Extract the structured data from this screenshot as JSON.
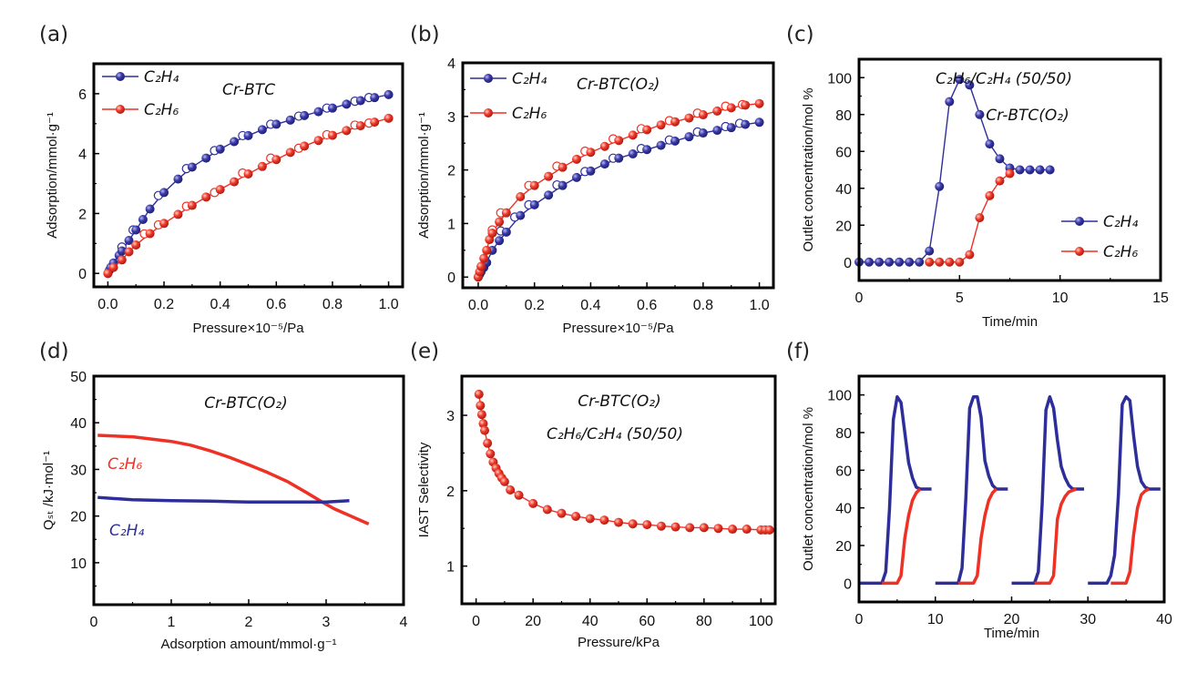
{
  "colors": {
    "C2H4": "#2e2e9a",
    "C2H6": "#ee3124"
  },
  "chart_data": [
    {
      "panel": "(a)",
      "type": "line",
      "title": "Cr-BTC",
      "xlabel": "Pressure×10⁻⁵/Pa",
      "ylabel": "Adsorption/mmol·g⁻¹",
      "xlim": [
        -0.05,
        1.05
      ],
      "ylim": [
        -0.45,
        7
      ],
      "xticks": [
        0,
        0.2,
        0.4,
        0.6,
        0.8,
        1.0
      ],
      "xtick_labels": [
        "0.0",
        "0.2",
        "0.4",
        "0.6",
        "0.8",
        "1.0"
      ],
      "yticks": [
        0,
        2,
        4,
        6
      ],
      "ytick_labels": [
        "0",
        "2",
        "4",
        "6"
      ],
      "legend": "top-left",
      "series": [
        {
          "name": "C₂H₄",
          "color": "#2e2e9a",
          "marker": "filled",
          "x": [
            0,
            0.005,
            0.01,
            0.02,
            0.04,
            0.05,
            0.075,
            0.1,
            0.125,
            0.15,
            0.2,
            0.25,
            0.3,
            0.35,
            0.4,
            0.45,
            0.5,
            0.55,
            0.6,
            0.65,
            0.7,
            0.75,
            0.8,
            0.85,
            0.9,
            0.95,
            1.0
          ],
          "y": [
            0,
            0.1,
            0.2,
            0.35,
            0.6,
            0.75,
            1.1,
            1.45,
            1.8,
            2.15,
            2.7,
            3.15,
            3.55,
            3.85,
            4.15,
            4.4,
            4.6,
            4.8,
            4.98,
            5.12,
            5.27,
            5.4,
            5.52,
            5.65,
            5.77,
            5.87,
            5.97
          ],
          "desorption": {
            "x": [
              0.93,
              0.88,
              0.78,
              0.68,
              0.58,
              0.48,
              0.38,
              0.28,
              0.18,
              0.09,
              0.05
            ],
            "y": [
              5.87,
              5.75,
              5.52,
              5.25,
              4.98,
              4.6,
              4.1,
              3.5,
              2.6,
              1.45,
              0.88
            ]
          }
        },
        {
          "name": "C₂H₆",
          "color": "#ee3124",
          "marker": "filled",
          "x": [
            0,
            0.02,
            0.05,
            0.075,
            0.1,
            0.15,
            0.2,
            0.25,
            0.3,
            0.35,
            0.4,
            0.45,
            0.5,
            0.55,
            0.6,
            0.65,
            0.7,
            0.75,
            0.8,
            0.85,
            0.9,
            0.95,
            1.0
          ],
          "y": [
            0,
            0.2,
            0.45,
            0.72,
            0.95,
            1.33,
            1.67,
            1.97,
            2.27,
            2.55,
            2.8,
            3.06,
            3.32,
            3.57,
            3.8,
            4.04,
            4.25,
            4.44,
            4.61,
            4.77,
            4.93,
            5.05,
            5.18
          ],
          "desorption": {
            "x": [
              0.93,
              0.88,
              0.78,
              0.68,
              0.58,
              0.48,
              0.38,
              0.28,
              0.18,
              0.13
            ],
            "y": [
              5.02,
              4.95,
              4.63,
              4.18,
              3.85,
              3.35,
              2.7,
              2.24,
              1.62,
              1.32
            ]
          }
        }
      ]
    },
    {
      "panel": "(b)",
      "type": "line",
      "title": "Cr-BTC(O₂)",
      "xlabel": "Pressure×10⁻⁵/Pa",
      "ylabel": "Adsorption/mmol·g⁻¹",
      "xlim": [
        -0.055,
        1.05
      ],
      "ylim": [
        -0.2,
        4
      ],
      "xticks": [
        0,
        0.2,
        0.4,
        0.6,
        0.8,
        1.0
      ],
      "xtick_labels": [
        "0.0",
        "0.2",
        "0.4",
        "0.6",
        "0.8",
        "1.0"
      ],
      "yticks": [
        0,
        1,
        2,
        3,
        4
      ],
      "ytick_labels": [
        "0",
        "1",
        "2",
        "3",
        "4"
      ],
      "legend": "top-left",
      "series": [
        {
          "name": "C₂H₄",
          "color": "#2e2e9a",
          "marker": "filled",
          "x": [
            0,
            0.005,
            0.01,
            0.02,
            0.03,
            0.05,
            0.075,
            0.1,
            0.15,
            0.2,
            0.25,
            0.3,
            0.35,
            0.4,
            0.45,
            0.5,
            0.55,
            0.6,
            0.65,
            0.7,
            0.75,
            0.8,
            0.85,
            0.9,
            0.95,
            1.0
          ],
          "y": [
            0,
            0.05,
            0.1,
            0.18,
            0.27,
            0.5,
            0.68,
            0.84,
            1.15,
            1.35,
            1.53,
            1.71,
            1.86,
            1.98,
            2.11,
            2.22,
            2.3,
            2.38,
            2.46,
            2.54,
            2.62,
            2.69,
            2.74,
            2.79,
            2.85,
            2.89
          ],
          "desorption": {
            "x": [
              0.93,
              0.88,
              0.78,
              0.68,
              0.58,
              0.48,
              0.38,
              0.28,
              0.18,
              0.13,
              0.08
            ],
            "y": [
              2.87,
              2.81,
              2.71,
              2.56,
              2.4,
              2.22,
              1.97,
              1.72,
              1.35,
              1.12,
              0.86
            ]
          }
        },
        {
          "name": "C₂H₆",
          "color": "#ee3124",
          "marker": "filled",
          "x": [
            0,
            0.005,
            0.01,
            0.02,
            0.03,
            0.04,
            0.05,
            0.075,
            0.1,
            0.15,
            0.2,
            0.25,
            0.3,
            0.35,
            0.4,
            0.45,
            0.5,
            0.55,
            0.6,
            0.65,
            0.7,
            0.75,
            0.8,
            0.85,
            0.9,
            0.95,
            1.0
          ],
          "y": [
            0,
            0.1,
            0.2,
            0.35,
            0.5,
            0.7,
            0.82,
            1.03,
            1.2,
            1.5,
            1.71,
            1.88,
            2.05,
            2.2,
            2.33,
            2.44,
            2.55,
            2.65,
            2.75,
            2.84,
            2.9,
            2.97,
            3.03,
            3.1,
            3.16,
            3.21,
            3.24
          ],
          "desorption": {
            "x": [
              0.94,
              0.88,
              0.78,
              0.68,
              0.58,
              0.48,
              0.38,
              0.28,
              0.18,
              0.08,
              0.05
            ],
            "y": [
              3.22,
              3.19,
              3.06,
              2.92,
              2.77,
              2.58,
              2.35,
              2.07,
              1.71,
              1.2,
              0.88
            ]
          }
        }
      ]
    },
    {
      "panel": "(c)",
      "type": "line",
      "title": "C₂H₆/C₂H₄ (50/50)",
      "subtitle": "Cr-BTC(O₂)",
      "xlabel": "Time/min",
      "ylabel": "Outlet concentration/mol %",
      "xlim": [
        0,
        15
      ],
      "ylim": [
        -10,
        110
      ],
      "xticks": [
        0,
        5,
        10,
        15
      ],
      "xtick_labels": [
        "0",
        "5",
        "10",
        "15"
      ],
      "yticks": [
        0,
        20,
        40,
        60,
        80,
        100
      ],
      "ytick_labels": [
        "0",
        "20",
        "40",
        "60",
        "80",
        "100"
      ],
      "legend": "bottom-right",
      "series": [
        {
          "name": "C₂H₄",
          "color": "#2e2e9a",
          "marker": "filled",
          "x": [
            0,
            0.5,
            1,
            1.5,
            2,
            2.5,
            3,
            3.5,
            4,
            4.5,
            5,
            5.5,
            6,
            6.5,
            7,
            7.5,
            8,
            8.5,
            9,
            9.5
          ],
          "y": [
            0,
            0,
            0,
            0,
            0,
            0,
            0,
            6,
            41,
            87,
            99,
            96,
            80,
            64,
            56,
            51,
            50,
            50,
            50,
            50
          ]
        },
        {
          "name": "C₂H₆",
          "color": "#ee3124",
          "marker": "filled",
          "x": [
            3.5,
            4,
            4.5,
            5,
            5.5,
            6,
            6.5,
            7,
            7.5
          ],
          "y": [
            0,
            0,
            0,
            0,
            4,
            24,
            36,
            44,
            48
          ]
        }
      ]
    },
    {
      "panel": "(d)",
      "type": "line",
      "title": "Cr-BTC(O₂)",
      "xlabel": "Adsorption amount/mmol·g⁻¹",
      "ylabel": "Qₛₜ /kJ·mol⁻¹",
      "xlim": [
        0,
        4
      ],
      "ylim": [
        1,
        50
      ],
      "xticks": [
        0,
        1,
        2,
        3,
        4
      ],
      "xtick_labels": [
        "0",
        "1",
        "2",
        "3",
        "4"
      ],
      "yticks": [
        10,
        20,
        30,
        40,
        50
      ],
      "ytick_labels": [
        "10",
        "20",
        "30",
        "40",
        "50"
      ],
      "series": [
        {
          "name": "C₂H₆",
          "color": "#ee3124",
          "x": [
            0.05,
            0.5,
            1.0,
            1.25,
            1.5,
            1.75,
            2.0,
            2.25,
            2.5,
            2.75,
            2.95,
            3.1,
            3.25,
            3.4,
            3.55
          ],
          "y": [
            37.3,
            37.0,
            36.0,
            35.2,
            34.0,
            32.6,
            31.0,
            29.3,
            27.4,
            25.0,
            23.0,
            21.6,
            20.5,
            19.4,
            18.3
          ]
        },
        {
          "name": "C₂H₄",
          "color": "#2e2e9a",
          "x": [
            0.05,
            0.5,
            1.0,
            1.5,
            2.0,
            2.5,
            3.0,
            3.3
          ],
          "y": [
            24.0,
            23.5,
            23.3,
            23.2,
            23.0,
            23.0,
            23.0,
            23.3
          ]
        }
      ]
    },
    {
      "panel": "(e)",
      "type": "line",
      "title": "Cr-BTC(O₂)",
      "subtitle": "C₂H₆/C₂H₄ (50/50)",
      "xlabel": "Pressure/kPa",
      "ylabel": "IAST Selectivity",
      "xlim": [
        -5,
        105
      ],
      "ylim": [
        0.5,
        3.52
      ],
      "xticks": [
        0,
        20,
        40,
        60,
        80,
        100
      ],
      "xtick_labels": [
        "0",
        "20",
        "40",
        "60",
        "80",
        "100"
      ],
      "yticks": [
        1,
        2,
        3
      ],
      "ytick_labels": [
        "1",
        "2",
        "3"
      ],
      "series": [
        {
          "color": "#ee3124",
          "marker": "filled",
          "x": [
            1,
            1.5,
            2,
            2.5,
            3,
            4,
            5,
            6,
            7,
            8,
            9,
            10,
            12,
            15,
            20,
            25,
            30,
            35,
            40,
            45,
            50,
            55,
            60,
            65,
            70,
            75,
            80,
            85,
            90,
            95,
            100,
            101.5,
            103
          ],
          "y": [
            3.28,
            3.13,
            3.01,
            2.89,
            2.8,
            2.63,
            2.49,
            2.38,
            2.3,
            2.23,
            2.17,
            2.12,
            2.01,
            1.94,
            1.83,
            1.75,
            1.7,
            1.66,
            1.63,
            1.61,
            1.58,
            1.56,
            1.55,
            1.53,
            1.52,
            1.51,
            1.51,
            1.5,
            1.49,
            1.49,
            1.48,
            1.48,
            1.48
          ]
        }
      ]
    },
    {
      "panel": "(f)",
      "type": "line",
      "xlabel": "Time/min",
      "ylabel": "Outlet concentration/mol %",
      "xlim": [
        0,
        40
      ],
      "ylim": [
        -10,
        110
      ],
      "xticks": [
        0,
        10,
        20,
        30,
        40
      ],
      "xtick_labels": [
        "0",
        "10",
        "20",
        "30",
        "40"
      ],
      "yticks": [
        0,
        20,
        40,
        60,
        80,
        100
      ],
      "ytick_labels": [
        "0",
        "20",
        "40",
        "60",
        "80",
        "100"
      ],
      "series": [
        {
          "name": "C₂H₄",
          "color": "#2e2e9a",
          "segments": [
            {
              "x": [
                0,
                3,
                3.5,
                4,
                4.5,
                5,
                5.5,
                6,
                6.5,
                7,
                7.5,
                8,
                9.5
              ],
              "y": [
                0,
                0,
                6,
                40,
                87,
                99,
                96,
                80,
                64,
                56,
                51,
                50,
                50
              ]
            },
            {
              "x": [
                10,
                13,
                13.5,
                14,
                14.5,
                15,
                15.5,
                16,
                16.5,
                17,
                17.5,
                18,
                19.5
              ],
              "y": [
                0,
                0,
                8,
                45,
                93,
                99,
                99,
                88,
                65,
                57,
                52,
                50,
                50
              ]
            },
            {
              "x": [
                20,
                23,
                23.5,
                24,
                24.5,
                25,
                25.5,
                26,
                26.5,
                27,
                27.5,
                28,
                29.5
              ],
              "y": [
                0,
                0,
                6,
                42,
                92,
                99,
                93,
                76,
                62,
                56,
                52,
                50,
                50
              ]
            },
            {
              "x": [
                30,
                32.5,
                33,
                33.5,
                34,
                34.5,
                35,
                35.5,
                36,
                36.5,
                37,
                37.5,
                38,
                39.5
              ],
              "y": [
                0,
                0,
                4,
                15,
                47,
                95,
                99,
                97,
                78,
                62,
                54,
                51,
                50,
                50
              ]
            }
          ]
        },
        {
          "name": "C₂H₆",
          "color": "#ee3124",
          "segments": [
            {
              "x": [
                3,
                5,
                5.5,
                6,
                6.5,
                7,
                7.5,
                8
              ],
              "y": [
                0,
                0,
                4,
                24,
                36,
                44,
                48,
                50
              ]
            },
            {
              "x": [
                13,
                15,
                15.5,
                16,
                16.5,
                17,
                17.5,
                18
              ],
              "y": [
                0,
                0,
                4,
                24,
                36,
                44,
                48,
                50
              ]
            },
            {
              "x": [
                23,
                25,
                25.5,
                26,
                26.5,
                27,
                27.5,
                28.5
              ],
              "y": [
                0,
                0,
                4,
                34,
                42,
                46,
                48.5,
                50
              ]
            },
            {
              "x": [
                33,
                35,
                35.5,
                36,
                36.5,
                37,
                37.5,
                38
              ],
              "y": [
                0,
                0,
                6,
                26,
                40,
                47,
                49,
                50
              ]
            }
          ]
        }
      ]
    }
  ]
}
